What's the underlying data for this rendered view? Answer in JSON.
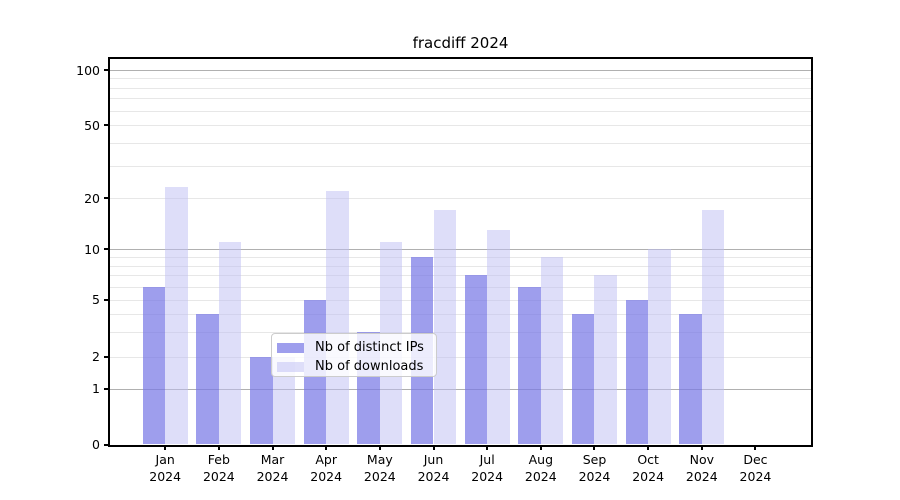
{
  "chart_data": {
    "type": "bar",
    "title": "fracdiff 2024",
    "categories": [
      "Jan",
      "Feb",
      "Mar",
      "Apr",
      "May",
      "Jun",
      "Jul",
      "Aug",
      "Sep",
      "Oct",
      "Nov",
      "Dec"
    ],
    "category_year_line": "2024",
    "series": [
      {
        "name": "Nb of distinct IPs",
        "values": [
          6,
          4,
          2,
          5,
          3,
          9,
          7,
          6,
          4,
          5,
          4,
          0
        ],
        "color": "rgba(120,120,230,0.72)"
      },
      {
        "name": "Nb of downloads",
        "values": [
          23,
          11,
          2,
          22,
          11,
          17,
          13,
          9,
          7,
          10,
          17,
          0
        ],
        "color": "rgba(190,190,243,0.5)"
      }
    ],
    "y_axis": {
      "scale": "symlog",
      "tick_labels": [
        "0",
        "1",
        "2",
        "5",
        "10",
        "20",
        "50",
        "100"
      ],
      "tick_values": [
        0,
        1,
        2,
        5,
        10,
        20,
        50,
        100
      ],
      "minor_tick_values": [
        3,
        4,
        6,
        7,
        8,
        9,
        30,
        40,
        60,
        70,
        80,
        90
      ],
      "major_grid_values": [
        1,
        10,
        100
      ]
    },
    "legend": {
      "labels": [
        "Nb of distinct IPs",
        "Nb of downloads"
      ],
      "position": "lower-center"
    },
    "grid": true
  },
  "colors": {
    "bar_distinct_ips_flat": "#a2a2ee",
    "bar_downloads_flat": "#dbdbf8",
    "major_gridline": "#b0b0b0",
    "minor_gridline": "#e7e7e7",
    "spine": "#000000",
    "text": "#000000",
    "legend_border": "#cccccc",
    "legend_background": "rgba(255,255,255,0.8)"
  }
}
